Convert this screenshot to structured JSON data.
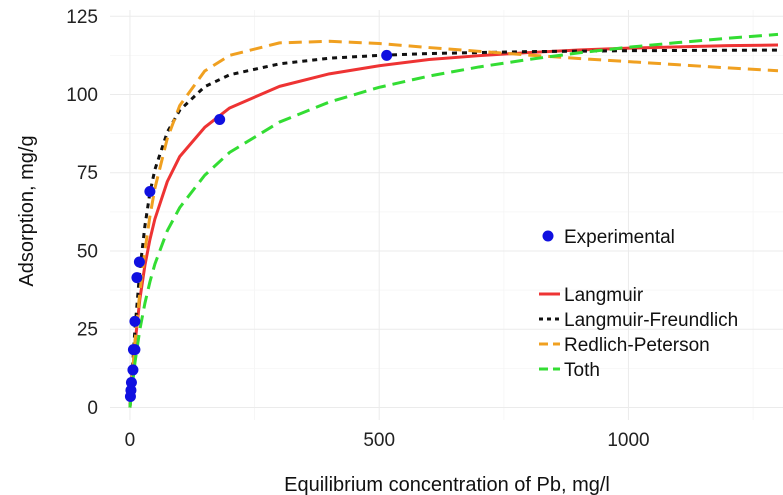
{
  "chart_data": {
    "type": "scatter",
    "title": "",
    "xlabel": "Equilibrium concentration of Pb, mg/l",
    "ylabel": "Adsorption, mg/g",
    "xlim": [
      -40,
      1310
    ],
    "ylim": [
      -4,
      127
    ],
    "x_ticks": [
      {
        "value": 0,
        "label": "0"
      },
      {
        "value": 500,
        "label": "500"
      },
      {
        "value": 1000,
        "label": "1000"
      }
    ],
    "y_ticks": [
      {
        "value": 0,
        "label": "0"
      },
      {
        "value": 25,
        "label": "25"
      },
      {
        "value": 50,
        "label": "50"
      },
      {
        "value": 75,
        "label": "75"
      },
      {
        "value": 100,
        "label": "100"
      },
      {
        "value": 125,
        "label": "125"
      }
    ],
    "grid": true,
    "legend_position": "right",
    "series": [
      {
        "name": "Experimental",
        "kind": "points",
        "color": "#1010e0",
        "points": [
          [
            1,
            3.5
          ],
          [
            2,
            5.5
          ],
          [
            3,
            8
          ],
          [
            6,
            12
          ],
          [
            7,
            18.5
          ],
          [
            10,
            18.5
          ],
          [
            10,
            27.5
          ],
          [
            14,
            41.5
          ],
          [
            19,
            46.5
          ],
          [
            40,
            69
          ],
          [
            180,
            92
          ],
          [
            515,
            112.5
          ]
        ]
      },
      {
        "name": "Langmuir",
        "kind": "solid",
        "color": "#ee3333",
        "points": [
          [
            0,
            0
          ],
          [
            10,
            20.3
          ],
          [
            20,
            34.7
          ],
          [
            30,
            45.4
          ],
          [
            40,
            53.6
          ],
          [
            50,
            60.2
          ],
          [
            75,
            72.2
          ],
          [
            100,
            80.2
          ],
          [
            150,
            89.5
          ],
          [
            200,
            95.7
          ],
          [
            300,
            102.6
          ],
          [
            400,
            106.6
          ],
          [
            500,
            109.2
          ],
          [
            600,
            111.2
          ],
          [
            700,
            112.4
          ],
          [
            800,
            113.4
          ],
          [
            900,
            114.2
          ],
          [
            1000,
            114.8
          ],
          [
            1100,
            115.2
          ],
          [
            1200,
            115.6
          ],
          [
            1300,
            115.8
          ]
        ]
      },
      {
        "name": "Langmuir-Freundlich",
        "kind": "dotted",
        "color": "#111111",
        "points": [
          [
            0,
            0
          ],
          [
            10,
            25
          ],
          [
            20,
            44
          ],
          [
            30,
            58
          ],
          [
            40,
            68.5
          ],
          [
            50,
            76
          ],
          [
            75,
            88
          ],
          [
            100,
            95
          ],
          [
            150,
            102.5
          ],
          [
            200,
            106.3
          ],
          [
            300,
            109.8
          ],
          [
            400,
            111.6
          ],
          [
            500,
            112.5
          ],
          [
            600,
            113.1
          ],
          [
            800,
            113.7
          ],
          [
            1000,
            114
          ],
          [
            1300,
            114.2
          ]
        ]
      },
      {
        "name": "Redlich-Peterson",
        "kind": "dashed",
        "color": "#f0a020",
        "points": [
          [
            0,
            0
          ],
          [
            10,
            21
          ],
          [
            20,
            37
          ],
          [
            30,
            50
          ],
          [
            40,
            61
          ],
          [
            50,
            70
          ],
          [
            75,
            86
          ],
          [
            100,
            96.5
          ],
          [
            150,
            107.5
          ],
          [
            200,
            112.5
          ],
          [
            300,
            116.5
          ],
          [
            400,
            117
          ],
          [
            500,
            116.3
          ],
          [
            600,
            115
          ],
          [
            700,
            113.8
          ],
          [
            800,
            112.6
          ],
          [
            900,
            111.5
          ],
          [
            1000,
            110.5
          ],
          [
            1100,
            109.5
          ],
          [
            1200,
            108.5
          ],
          [
            1300,
            107.6
          ]
        ]
      },
      {
        "name": "Toth",
        "kind": "dashed",
        "color": "#33dd33",
        "points": [
          [
            0,
            0
          ],
          [
            10,
            14.3
          ],
          [
            20,
            25
          ],
          [
            30,
            33.3
          ],
          [
            40,
            40.1
          ],
          [
            50,
            45.8
          ],
          [
            75,
            56.5
          ],
          [
            100,
            63.9
          ],
          [
            150,
            74.2
          ],
          [
            200,
            81.5
          ],
          [
            300,
            91.2
          ],
          [
            400,
            97.6
          ],
          [
            500,
            102.3
          ],
          [
            600,
            105.9
          ],
          [
            700,
            108.8
          ],
          [
            800,
            111.2
          ],
          [
            900,
            113.3
          ],
          [
            1000,
            115.1
          ],
          [
            1100,
            116.6
          ],
          [
            1200,
            118
          ],
          [
            1300,
            119.2
          ]
        ]
      }
    ]
  }
}
